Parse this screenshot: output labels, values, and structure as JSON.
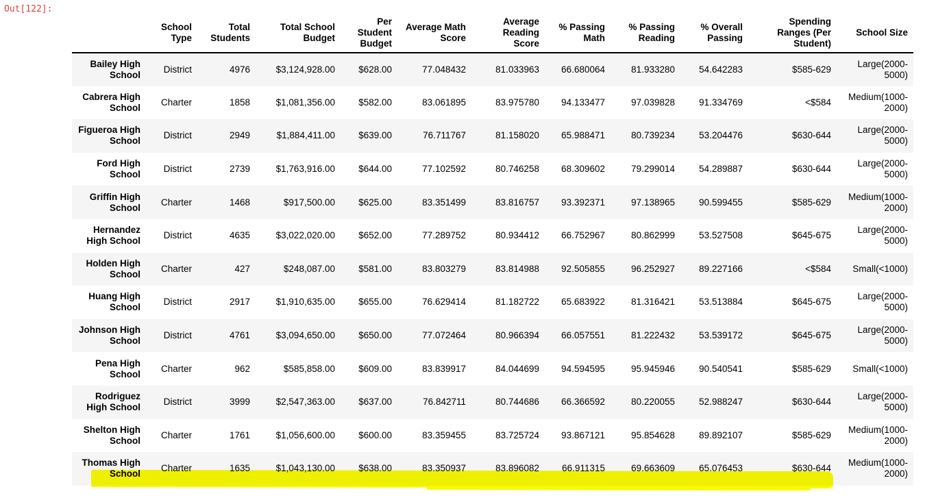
{
  "prompt": {
    "label": "Out[122]:"
  },
  "colors": {
    "prompt_color": "#d2463d",
    "stripe_color": "#f5f5f5",
    "highlight_color": "#f9f900",
    "header_border": "#000000"
  },
  "table": {
    "columns": [
      "School Type",
      "Total Students",
      "Total School Budget",
      "Per Student Budget",
      "Average Math Score",
      "Average Reading Score",
      "% Passing Math",
      "% Passing Reading",
      "% Overall Passing",
      "Spending Ranges (Per Student)",
      "School Size"
    ],
    "rows": [
      {
        "name": "Bailey High School",
        "highlighted": false,
        "values": [
          "District",
          "4976",
          "$3,124,928.00",
          "$628.00",
          "77.048432",
          "81.033963",
          "66.680064",
          "81.933280",
          "54.642283",
          "$585-629",
          "Large(2000-5000)"
        ]
      },
      {
        "name": "Cabrera High School",
        "highlighted": false,
        "values": [
          "Charter",
          "1858",
          "$1,081,356.00",
          "$582.00",
          "83.061895",
          "83.975780",
          "94.133477",
          "97.039828",
          "91.334769",
          "<$584",
          "Medium(1000-2000)"
        ]
      },
      {
        "name": "Figueroa High School",
        "highlighted": false,
        "values": [
          "District",
          "2949",
          "$1,884,411.00",
          "$639.00",
          "76.711767",
          "81.158020",
          "65.988471",
          "80.739234",
          "53.204476",
          "$630-644",
          "Large(2000-5000)"
        ]
      },
      {
        "name": "Ford High School",
        "highlighted": false,
        "values": [
          "District",
          "2739",
          "$1,763,916.00",
          "$644.00",
          "77.102592",
          "80.746258",
          "68.309602",
          "79.299014",
          "54.289887",
          "$630-644",
          "Large(2000-5000)"
        ]
      },
      {
        "name": "Griffin High School",
        "highlighted": false,
        "values": [
          "Charter",
          "1468",
          "$917,500.00",
          "$625.00",
          "83.351499",
          "83.816757",
          "93.392371",
          "97.138965",
          "90.599455",
          "$585-629",
          "Medium(1000-2000)"
        ]
      },
      {
        "name": "Hernandez High School",
        "highlighted": false,
        "values": [
          "District",
          "4635",
          "$3,022,020.00",
          "$652.00",
          "77.289752",
          "80.934412",
          "66.752967",
          "80.862999",
          "53.527508",
          "$645-675",
          "Large(2000-5000)"
        ]
      },
      {
        "name": "Holden High School",
        "highlighted": false,
        "values": [
          "Charter",
          "427",
          "$248,087.00",
          "$581.00",
          "83.803279",
          "83.814988",
          "92.505855",
          "96.252927",
          "89.227166",
          "<$584",
          "Small(<1000)"
        ]
      },
      {
        "name": "Huang High School",
        "highlighted": false,
        "values": [
          "District",
          "2917",
          "$1,910,635.00",
          "$655.00",
          "76.629414",
          "81.182722",
          "65.683922",
          "81.316421",
          "53.513884",
          "$645-675",
          "Large(2000-5000)"
        ]
      },
      {
        "name": "Johnson High School",
        "highlighted": false,
        "values": [
          "District",
          "4761",
          "$3,094,650.00",
          "$650.00",
          "77.072464",
          "80.966394",
          "66.057551",
          "81.222432",
          "53.539172",
          "$645-675",
          "Large(2000-5000)"
        ]
      },
      {
        "name": "Pena High School",
        "highlighted": false,
        "values": [
          "Charter",
          "962",
          "$585,858.00",
          "$609.00",
          "83.839917",
          "84.044699",
          "94.594595",
          "95.945946",
          "90.540541",
          "$585-629",
          "Small(<1000)"
        ]
      },
      {
        "name": "Rodriguez High School",
        "highlighted": false,
        "values": [
          "District",
          "3999",
          "$2,547,363.00",
          "$637.00",
          "76.842711",
          "80.744686",
          "66.366592",
          "80.220055",
          "52.988247",
          "$630-644",
          "Large(2000-5000)"
        ]
      },
      {
        "name": "Shelton High School",
        "highlighted": false,
        "values": [
          "Charter",
          "1761",
          "$1,056,600.00",
          "$600.00",
          "83.359455",
          "83.725724",
          "93.867121",
          "95.854628",
          "89.892107",
          "$585-629",
          "Medium(1000-2000)"
        ]
      },
      {
        "name": "Thomas High School",
        "highlighted": true,
        "values": [
          "Charter",
          "1635",
          "$1,043,130.00",
          "$638.00",
          "83.350937",
          "83.896082",
          "66.911315",
          "69.663609",
          "65.076453",
          "$630-644",
          "Medium(1000-2000)"
        ]
      }
    ],
    "annotation": {
      "type": "highlighter-stroke",
      "color": "#f9f900",
      "applies_to": "Thomas High School row (all cells except School Size)"
    }
  }
}
